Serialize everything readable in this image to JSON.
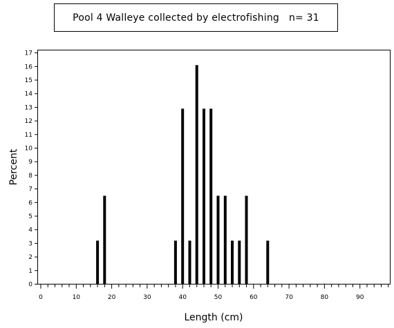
{
  "chart_data": {
    "type": "bar",
    "title": "Pool 4 Walleye collected by electrofishing",
    "n_label": "n= 31",
    "xlabel": "Length (cm)",
    "ylabel": "Percent",
    "xlim": [
      0,
      98
    ],
    "ylim": [
      0,
      17
    ],
    "x_major_ticks": [
      0,
      10,
      20,
      30,
      40,
      50,
      60,
      70,
      80,
      90
    ],
    "x_minor_step": 2,
    "y_ticks": [
      0,
      1,
      2,
      3,
      4,
      5,
      6,
      7,
      8,
      9,
      10,
      11,
      12,
      13,
      14,
      15,
      16,
      17
    ],
    "grid": false,
    "bar_color": "#000000",
    "x": [
      16,
      18,
      38,
      40,
      42,
      44,
      46,
      48,
      50,
      52,
      54,
      56,
      58,
      64
    ],
    "values": [
      3.2,
      6.5,
      3.2,
      12.9,
      3.2,
      16.1,
      12.9,
      12.9,
      6.5,
      6.5,
      3.2,
      3.2,
      6.5,
      3.2
    ]
  }
}
